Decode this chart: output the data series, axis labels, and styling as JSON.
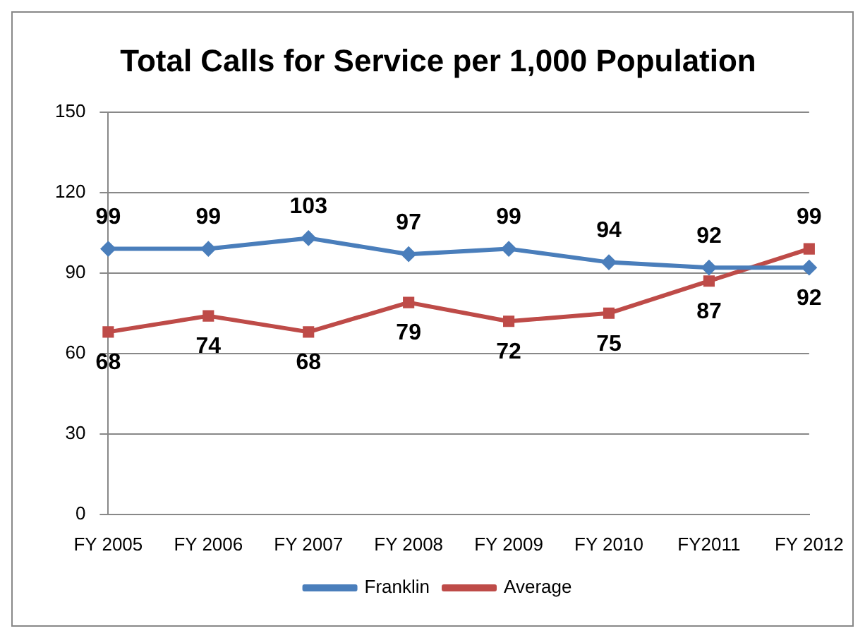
{
  "chart_data": {
    "type": "line",
    "title": "Total Calls for Service per 1,000 Population",
    "categories": [
      "FY 2005",
      "FY 2006",
      "FY 2007",
      "FY 2008",
      "FY 2009",
      "FY 2010",
      "FY2011",
      "FY 2012"
    ],
    "series": [
      {
        "name": "Franklin",
        "color": "#4a7ebb",
        "marker": "diamond",
        "values": [
          99,
          99,
          103,
          97,
          99,
          94,
          92,
          92
        ]
      },
      {
        "name": "Average",
        "color": "#be4b48",
        "marker": "square",
        "values": [
          68,
          74,
          68,
          79,
          72,
          75,
          87,
          99
        ]
      }
    ],
    "ylim": [
      0,
      150
    ],
    "yticks": [
      0,
      30,
      60,
      90,
      120,
      150
    ],
    "grid": "y",
    "legend": "bottom",
    "data_labels": true,
    "line_style": "solid"
  }
}
